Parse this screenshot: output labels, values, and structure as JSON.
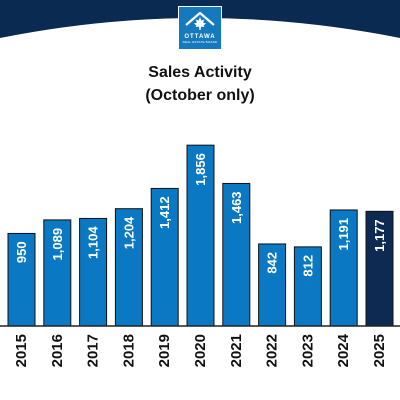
{
  "brand": {
    "logo_word": "OTTAWA",
    "logo_sub": "REAL ESTATE BOARD",
    "banner_color": "#0b2a52",
    "logo_color": "#1479bd"
  },
  "chart_data": {
    "type": "bar",
    "title_lines": [
      "Sales Activity",
      "(October only)"
    ],
    "categories": [
      "2015",
      "2016",
      "2017",
      "2018",
      "2019",
      "2020",
      "2021",
      "2022",
      "2023",
      "2024",
      "2025"
    ],
    "values": [
      950,
      1089,
      1104,
      1204,
      1412,
      1856,
      1463,
      842,
      812,
      1191,
      1177
    ],
    "value_labels": [
      "950",
      "1,089",
      "1,104",
      "1,204",
      "1,412",
      "1,856",
      "1,463",
      "842",
      "812",
      "1,191",
      "1,177"
    ],
    "bar_color": "#0a78c2",
    "highlight_color": "#0d2a52",
    "highlight_index": 10,
    "ylim": [
      0,
      1950
    ],
    "grid": false,
    "legend": "none"
  }
}
